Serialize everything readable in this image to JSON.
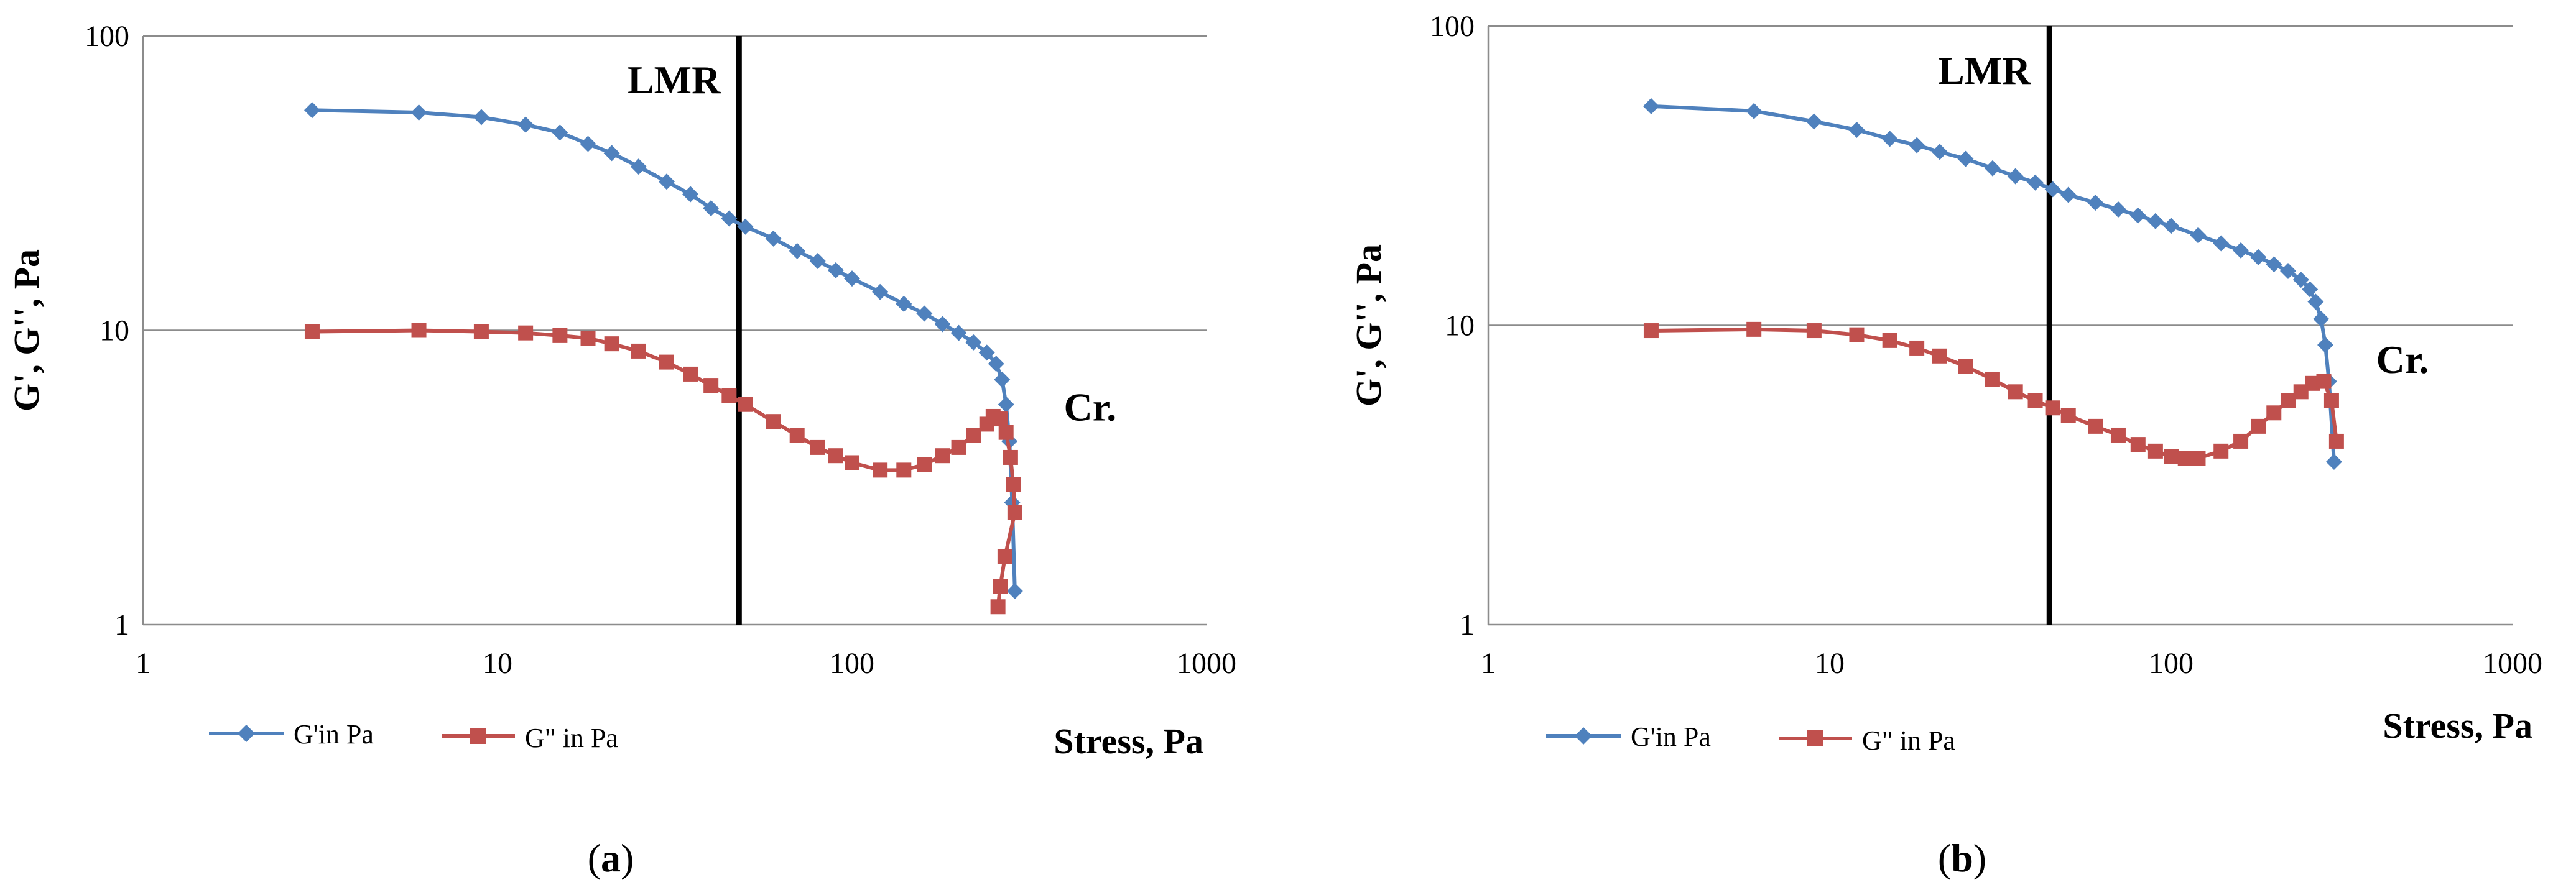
{
  "chart_data": [
    {
      "type": "line",
      "panel_label": "a",
      "xscale": "log",
      "yscale": "log",
      "xlim": [
        1,
        1000
      ],
      "ylim": [
        1,
        100
      ],
      "x_ticks": [
        "1",
        "10",
        "100",
        "1000"
      ],
      "y_ticks": [
        "1",
        "10",
        "100"
      ],
      "xlabel": "Stress, Pa",
      "ylabel": "G', G'', Pa",
      "grid": "horizontal",
      "lmr": {
        "label": "LMR",
        "x": 48
      },
      "crossover": {
        "label": "Cr.",
        "x": 330,
        "y": 5.5
      },
      "series": [
        {
          "name": "G'in Pa",
          "color": "#4F81BD",
          "marker": "diamond",
          "x": [
            3,
            6,
            9,
            12,
            15,
            18,
            21,
            25,
            30,
            35,
            40,
            45,
            50,
            60,
            70,
            80,
            90,
            100,
            120,
            140,
            160,
            180,
            200,
            220,
            240,
            255,
            265,
            272,
            278,
            283,
            288
          ],
          "y": [
            56,
            55,
            53,
            50,
            47,
            43,
            40,
            36,
            32,
            29,
            26,
            24,
            22.5,
            20.5,
            18.6,
            17.2,
            16,
            15,
            13.5,
            12.3,
            11.4,
            10.5,
            9.8,
            9.1,
            8.4,
            7.7,
            6.8,
            5.6,
            4.2,
            2.6,
            1.3
          ]
        },
        {
          "name": "G\" in Pa",
          "color": "#C0504D",
          "marker": "square",
          "x": [
            3,
            6,
            9,
            12,
            15,
            18,
            21,
            25,
            30,
            35,
            40,
            45,
            50,
            60,
            70,
            80,
            90,
            100,
            120,
            140,
            160,
            180,
            200,
            220,
            240,
            250,
            262,
            272,
            280,
            285,
            288,
            270,
            262,
            258
          ],
          "y": [
            9.9,
            10,
            9.9,
            9.8,
            9.6,
            9.4,
            9.0,
            8.5,
            7.8,
            7.1,
            6.5,
            6.0,
            5.6,
            4.9,
            4.4,
            4.0,
            3.75,
            3.55,
            3.35,
            3.35,
            3.5,
            3.75,
            4.0,
            4.4,
            4.8,
            5.1,
            5.0,
            4.5,
            3.7,
            3.0,
            2.4,
            1.7,
            1.35,
            1.15
          ]
        }
      ]
    },
    {
      "type": "line",
      "panel_label": "b",
      "xscale": "log",
      "yscale": "log",
      "xlim": [
        1,
        1000
      ],
      "ylim": [
        1,
        100
      ],
      "x_ticks": [
        "1",
        "10",
        "100",
        "1000"
      ],
      "y_ticks": [
        "1",
        "10",
        "100"
      ],
      "xlabel": "Stress, Pa",
      "ylabel": "G', G'', Pa",
      "grid": "horizontal",
      "lmr": {
        "label": "LMR",
        "x": 44
      },
      "crossover": {
        "label": "Cr.",
        "x": 330,
        "y": 7.7
      },
      "series": [
        {
          "name": "G'in Pa",
          "color": "#4F81BD",
          "marker": "diamond",
          "x": [
            3,
            6,
            9,
            12,
            15,
            18,
            21,
            25,
            30,
            35,
            40,
            45,
            50,
            60,
            70,
            80,
            90,
            100,
            120,
            140,
            160,
            180,
            200,
            220,
            240,
            255,
            265,
            275,
            283,
            290,
            300
          ],
          "y": [
            54,
            52,
            48,
            45,
            42,
            40,
            38,
            36,
            33.5,
            31.5,
            30,
            28.5,
            27.3,
            25.7,
            24.4,
            23.3,
            22.3,
            21.5,
            20,
            18.8,
            17.8,
            16.9,
            16,
            15.2,
            14.2,
            13.2,
            12.0,
            10.5,
            8.6,
            6.5,
            3.5
          ]
        },
        {
          "name": "G\" in Pa",
          "color": "#C0504D",
          "marker": "square",
          "x": [
            3,
            6,
            9,
            12,
            15,
            18,
            21,
            25,
            30,
            35,
            40,
            45,
            50,
            60,
            70,
            80,
            90,
            100,
            110,
            120,
            140,
            160,
            180,
            200,
            220,
            240,
            260,
            280,
            295,
            305
          ],
          "y": [
            9.6,
            9.7,
            9.6,
            9.3,
            8.9,
            8.4,
            7.9,
            7.3,
            6.6,
            6.0,
            5.6,
            5.3,
            5.0,
            4.6,
            4.3,
            4.0,
            3.8,
            3.65,
            3.6,
            3.6,
            3.8,
            4.1,
            4.6,
            5.1,
            5.6,
            6.0,
            6.4,
            6.5,
            5.6,
            4.1
          ]
        }
      ]
    }
  ]
}
